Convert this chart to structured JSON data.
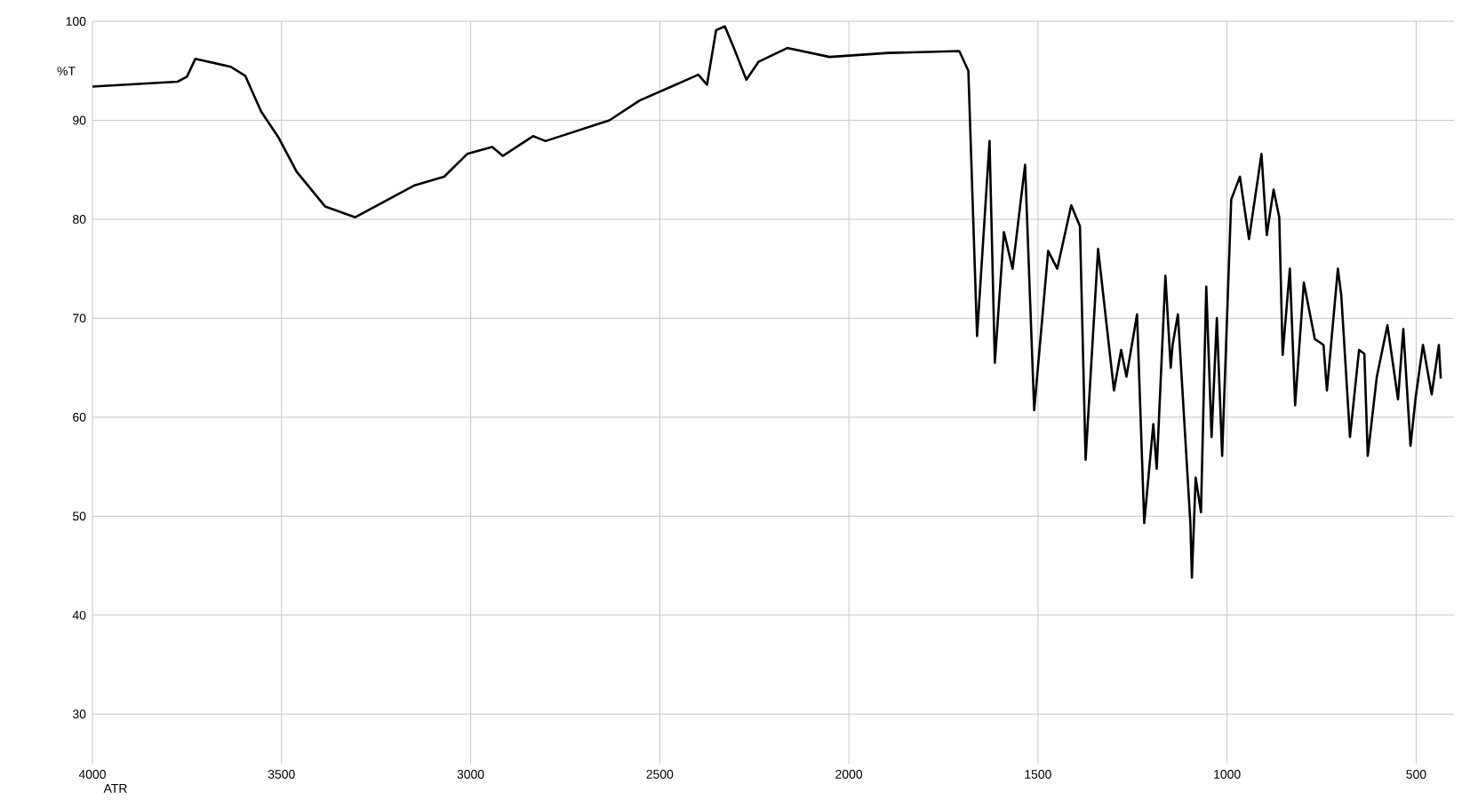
{
  "chart_data": {
    "type": "line",
    "ylabel": "%T",
    "annotations": [
      "ATR"
    ],
    "xlim": [
      4000,
      400
    ],
    "ylim": [
      25,
      100
    ],
    "xticks": [
      4000,
      3500,
      3000,
      2500,
      2000,
      1500,
      1000,
      500
    ],
    "yticks": [
      30,
      40,
      50,
      60,
      70,
      80,
      90,
      100
    ],
    "grid": true,
    "marker": "none",
    "line_style": "solid",
    "series": [
      {
        "color": "#000000",
        "x": [
          4000,
          3775,
          3750,
          3728,
          3634,
          3596,
          3554,
          3507,
          3460,
          3385,
          3305,
          3150,
          3070,
          3009,
          2943,
          2915,
          2835,
          2802,
          2633,
          2553,
          2398,
          2375,
          2351,
          2328,
          2304,
          2271,
          2239,
          2163,
          2051,
          1896,
          1708,
          1684,
          1661,
          1628,
          1614,
          1590,
          1567,
          1534,
          1510,
          1473,
          1449,
          1412,
          1389,
          1374,
          1341,
          1299,
          1280,
          1266,
          1238,
          1219,
          1195,
          1186,
          1163,
          1149,
          1144,
          1130,
          1097,
          1093,
          1083,
          1069,
          1055,
          1041,
          1027,
          1013,
          989,
          966,
          942,
          909,
          895,
          877,
          862,
          853,
          834,
          820,
          797,
          768,
          745,
          736,
          707,
          698,
          675,
          651,
          637,
          628,
          604,
          576,
          548,
          534,
          515,
          501,
          482,
          459,
          440,
          435
        ],
        "values": [
          93.4,
          93.9,
          94.4,
          96.2,
          95.4,
          94.5,
          90.9,
          88.2,
          84.8,
          81.3,
          80.2,
          83.4,
          84.3,
          86.6,
          87.3,
          86.4,
          88.4,
          87.9,
          90.0,
          92.0,
          94.6,
          93.6,
          99.1,
          99.5,
          97.3,
          94.1,
          95.9,
          97.3,
          96.4,
          96.8,
          97.0,
          95.0,
          68.2,
          87.9,
          65.5,
          78.7,
          75.0,
          85.5,
          60.7,
          76.8,
          75.0,
          81.4,
          79.3,
          55.7,
          77.0,
          62.7,
          66.8,
          64.1,
          70.4,
          49.3,
          59.3,
          54.8,
          74.3,
          65.0,
          67.3,
          70.4,
          49.3,
          43.8,
          53.9,
          50.4,
          73.2,
          58.0,
          70.0,
          56.1,
          82.0,
          84.3,
          78.0,
          86.6,
          78.4,
          83.0,
          80.2,
          66.3,
          75.0,
          61.2,
          73.6,
          67.9,
          67.3,
          62.7,
          75.0,
          72.3,
          58.0,
          66.8,
          66.4,
          56.1,
          64.1,
          69.3,
          61.8,
          68.9,
          57.1,
          62.1,
          67.3,
          62.3,
          67.3,
          63.9
        ]
      }
    ]
  }
}
